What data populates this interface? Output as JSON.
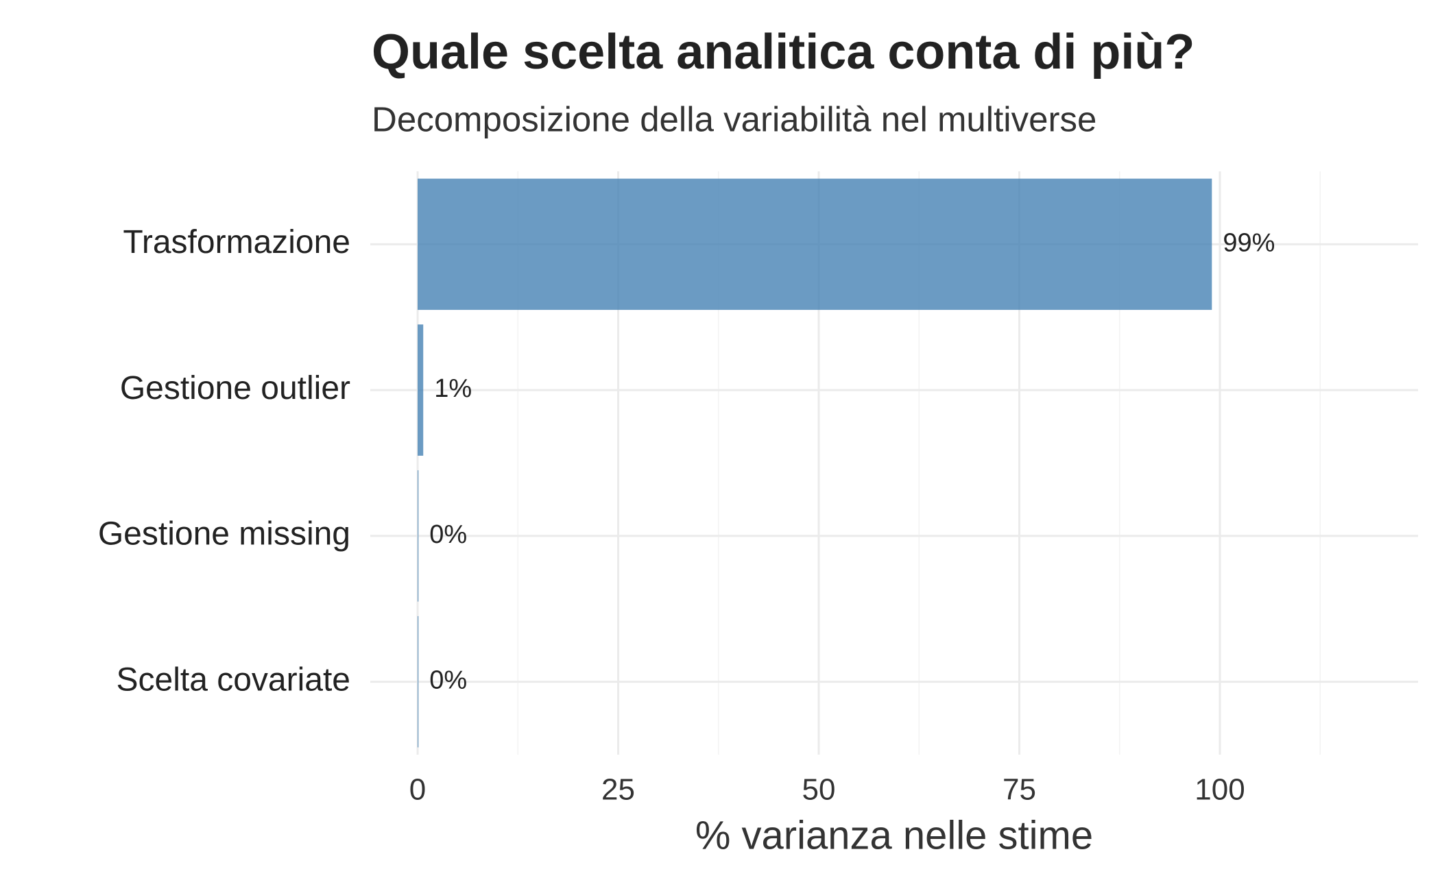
{
  "chart_data": {
    "type": "hbar",
    "title": "Quale scelta analitica conta di più?",
    "subtitle": "Decomposizione della variabilità nel multiverse",
    "x_label": "% varianza nelle stime",
    "categories": [
      "Trasformazione",
      "Gestione outlier",
      "Gestione missing",
      "Scelta covariate"
    ],
    "values": [
      99,
      0.7,
      0.1,
      0.1
    ],
    "value_labels": [
      "99%",
      "1%",
      "0%",
      "0%"
    ],
    "color": "#4682b4",
    "xlim": [
      -5.9,
      124.7
    ],
    "xticks": [
      0,
      25,
      50,
      75,
      100
    ],
    "grid": true
  }
}
